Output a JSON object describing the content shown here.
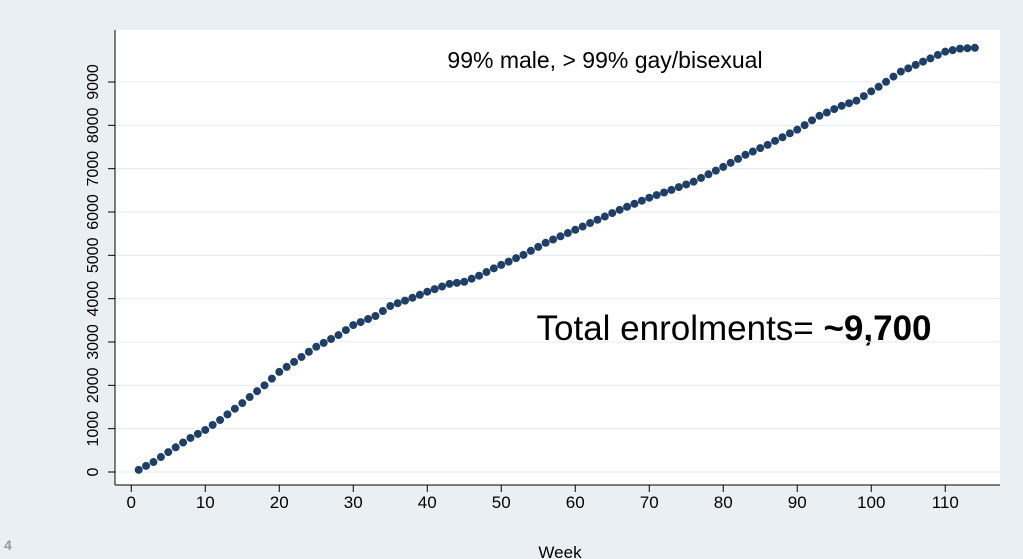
{
  "chart_data": {
    "type": "scatter",
    "annotations": [
      "99% male, > 99% gay/bisexual",
      "Total enrolments= ",
      "~9,700"
    ],
    "x_label": "Week",
    "x": [
      1,
      2,
      3,
      4,
      5,
      6,
      7,
      8,
      9,
      10,
      11,
      12,
      13,
      14,
      15,
      16,
      17,
      18,
      19,
      20,
      21,
      22,
      23,
      24,
      25,
      26,
      27,
      28,
      29,
      30,
      31,
      32,
      33,
      34,
      35,
      36,
      37,
      38,
      39,
      40,
      41,
      42,
      43,
      44,
      45,
      46,
      47,
      48,
      49,
      50,
      51,
      52,
      53,
      54,
      55,
      56,
      57,
      58,
      59,
      60,
      61,
      62,
      63,
      64,
      65,
      66,
      67,
      68,
      69,
      70,
      71,
      72,
      73,
      74,
      75,
      76,
      77,
      78,
      79,
      80,
      81,
      82,
      83,
      84,
      85,
      86,
      87,
      88,
      89,
      90,
      91,
      92,
      93,
      94,
      95,
      96,
      97,
      98,
      99,
      100,
      101,
      102,
      103,
      104,
      105,
      106,
      107,
      108,
      109,
      110,
      111,
      112,
      113,
      114
    ],
    "values": [
      50,
      140,
      230,
      345,
      460,
      570,
      680,
      785,
      880,
      970,
      1085,
      1200,
      1330,
      1460,
      1590,
      1730,
      1865,
      2000,
      2155,
      2310,
      2425,
      2540,
      2655,
      2775,
      2890,
      2980,
      3070,
      3160,
      3275,
      3390,
      3460,
      3530,
      3600,
      3715,
      3830,
      3895,
      3955,
      4020,
      4090,
      4160,
      4220,
      4280,
      4340,
      4365,
      4390,
      4460,
      4530,
      4615,
      4700,
      4780,
      4855,
      4935,
      5010,
      5105,
      5195,
      5290,
      5365,
      5440,
      5515,
      5590,
      5665,
      5745,
      5820,
      5895,
      5975,
      6050,
      6120,
      6190,
      6260,
      6330,
      6390,
      6450,
      6510,
      6575,
      6635,
      6700,
      6785,
      6870,
      6955,
      7040,
      7135,
      7225,
      7320,
      7395,
      7475,
      7550,
      7640,
      7725,
      7815,
      7900,
      8005,
      8115,
      8220,
      8295,
      8375,
      8450,
      8510,
      8570,
      8675,
      8785,
      8890,
      9005,
      9125,
      9240,
      9315,
      9395,
      9470,
      9545,
      9625,
      9700,
      9735,
      9770,
      9780,
      9790
    ],
    "color": "#1f3f66",
    "xlim": [
      -2.2,
      117.4
    ],
    "xticks": [
      0,
      10,
      20,
      30,
      40,
      50,
      60,
      70,
      80,
      90,
      100,
      110
    ],
    "ylim": [
      -300,
      10200
    ],
    "yticks": [
      0,
      1000,
      2000,
      3000,
      4000,
      5000,
      6000,
      7000,
      8000,
      9000
    ],
    "grid": true
  },
  "slide_number": "4"
}
